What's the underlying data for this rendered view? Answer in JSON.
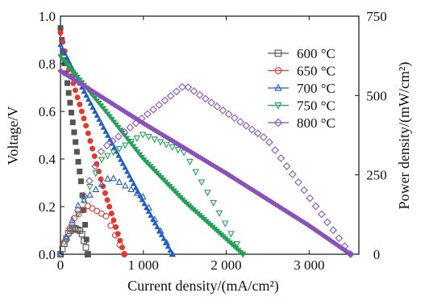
{
  "chart_data": {
    "type": "line",
    "xlabel": "Current density/(mA/cm²)",
    "ylabel_left": "Voltage/V",
    "ylabel_right": "Power density/(mW/cm²)",
    "xlim": [
      0,
      3600
    ],
    "ylim_left": [
      0,
      1.0
    ],
    "ylim_right": [
      0,
      750
    ],
    "x_ticks": [
      {
        "value": 0,
        "label": "0"
      },
      {
        "value": 1000,
        "label": "1 000"
      },
      {
        "value": 2000,
        "label": "2 000"
      },
      {
        "value": 3000,
        "label": "3 000"
      }
    ],
    "y_left_ticks": [
      {
        "value": 0,
        "label": "0.0"
      },
      {
        "value": 0.2,
        "label": "0.2"
      },
      {
        "value": 0.4,
        "label": "0.4"
      },
      {
        "value": 0.6,
        "label": "0.6"
      },
      {
        "value": 0.8,
        "label": "0.8"
      },
      {
        "value": 1.0,
        "label": "1.0"
      }
    ],
    "y_right_ticks": [
      {
        "value": 0,
        "label": "0"
      },
      {
        "value": 250,
        "label": "250"
      },
      {
        "value": 500,
        "label": "500"
      },
      {
        "value": 750,
        "label": "750"
      }
    ],
    "legend_position": "top-right",
    "series": [
      {
        "name": "600 °C",
        "color": "#555555",
        "marker": "square",
        "max_current": 330,
        "voltage": [
          [
            0,
            0.95
          ],
          [
            50,
            0.8
          ],
          [
            150,
            0.55
          ],
          [
            250,
            0.3
          ],
          [
            330,
            0.0
          ]
        ],
        "power": [
          [
            0,
            0
          ],
          [
            100,
            70
          ],
          [
            170,
            83
          ],
          [
            250,
            72
          ],
          [
            330,
            0
          ]
        ]
      },
      {
        "name": "650 °C",
        "color": "#e23a2e",
        "marker": "circle",
        "max_current": 770,
        "voltage": [
          [
            0,
            0.93
          ],
          [
            100,
            0.78
          ],
          [
            300,
            0.55
          ],
          [
            500,
            0.3
          ],
          [
            770,
            0.0
          ]
        ],
        "power": [
          [
            0,
            0
          ],
          [
            150,
            110
          ],
          [
            330,
            152
          ],
          [
            550,
            120
          ],
          [
            770,
            0
          ]
        ]
      },
      {
        "name": "700 °C",
        "color": "#1f5fbf",
        "marker": "triangle-up",
        "max_current": 1350,
        "voltage": [
          [
            0,
            0.88
          ],
          [
            200,
            0.74
          ],
          [
            600,
            0.48
          ],
          [
            1000,
            0.22
          ],
          [
            1350,
            0.0
          ]
        ],
        "power": [
          [
            0,
            0
          ],
          [
            200,
            150
          ],
          [
            600,
            245
          ],
          [
            1000,
            180
          ],
          [
            1350,
            0
          ]
        ]
      },
      {
        "name": "750 °C",
        "color": "#23a05a",
        "marker": "triangle-down",
        "max_current": 2200,
        "voltage": [
          [
            0,
            0.83
          ],
          [
            500,
            0.62
          ],
          [
            1000,
            0.4
          ],
          [
            1500,
            0.22
          ],
          [
            2200,
            0.0
          ]
        ],
        "power": [
          [
            0,
            0
          ],
          [
            500,
            300
          ],
          [
            1000,
            378
          ],
          [
            1500,
            320
          ],
          [
            2200,
            0
          ]
        ]
      },
      {
        "name": "800 °C",
        "color": "#8a52b8",
        "marker": "diamond",
        "max_current": 3500,
        "voltage": [
          [
            0,
            0.77
          ],
          [
            1000,
            0.55
          ],
          [
            2000,
            0.34
          ],
          [
            3000,
            0.12
          ],
          [
            3500,
            0.0
          ]
        ],
        "power": [
          [
            0,
            0
          ],
          [
            500,
            330
          ],
          [
            1500,
            533
          ],
          [
            2500,
            360
          ],
          [
            3500,
            0
          ]
        ]
      }
    ]
  }
}
